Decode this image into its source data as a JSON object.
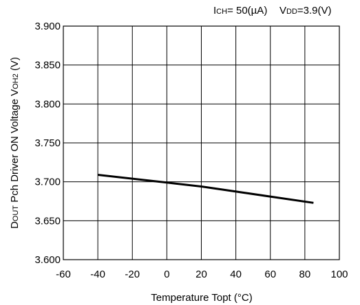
{
  "chart_data": {
    "type": "line",
    "title": "",
    "conditions": {
      "ich": {
        "main": "I",
        "sub": "CH",
        "rest": "= 50(µA)"
      },
      "vdd": {
        "main": "V",
        "sub": "DD",
        "rest": "=3.9(V)"
      }
    },
    "xlabel": "Temperature Topt (°C)",
    "ylabel": {
      "p1": "D",
      "p1_small": "OUT",
      "p2": " Pch Driver ON Voltage V",
      "p2_sub": "OH2",
      "p3": " (V)"
    },
    "xlim": [
      -60,
      100
    ],
    "ylim": [
      3.6,
      3.9
    ],
    "xticks": [
      -60,
      -40,
      -20,
      0,
      20,
      40,
      60,
      80,
      100
    ],
    "yticks": [
      3.6,
      3.65,
      3.7,
      3.75,
      3.8,
      3.85,
      3.9
    ],
    "xtick_labels": [
      "-60",
      "-40",
      "-20",
      "0",
      "20",
      "40",
      "60",
      "80",
      "100"
    ],
    "ytick_labels": [
      "3.600",
      "3.650",
      "3.700",
      "3.750",
      "3.800",
      "3.850",
      "3.900"
    ],
    "grid": true,
    "series": [
      {
        "color": "#000000",
        "x": [
          -40,
          0,
          20,
          85
        ],
        "y": [
          3.709,
          3.699,
          3.694,
          3.673
        ]
      }
    ]
  }
}
